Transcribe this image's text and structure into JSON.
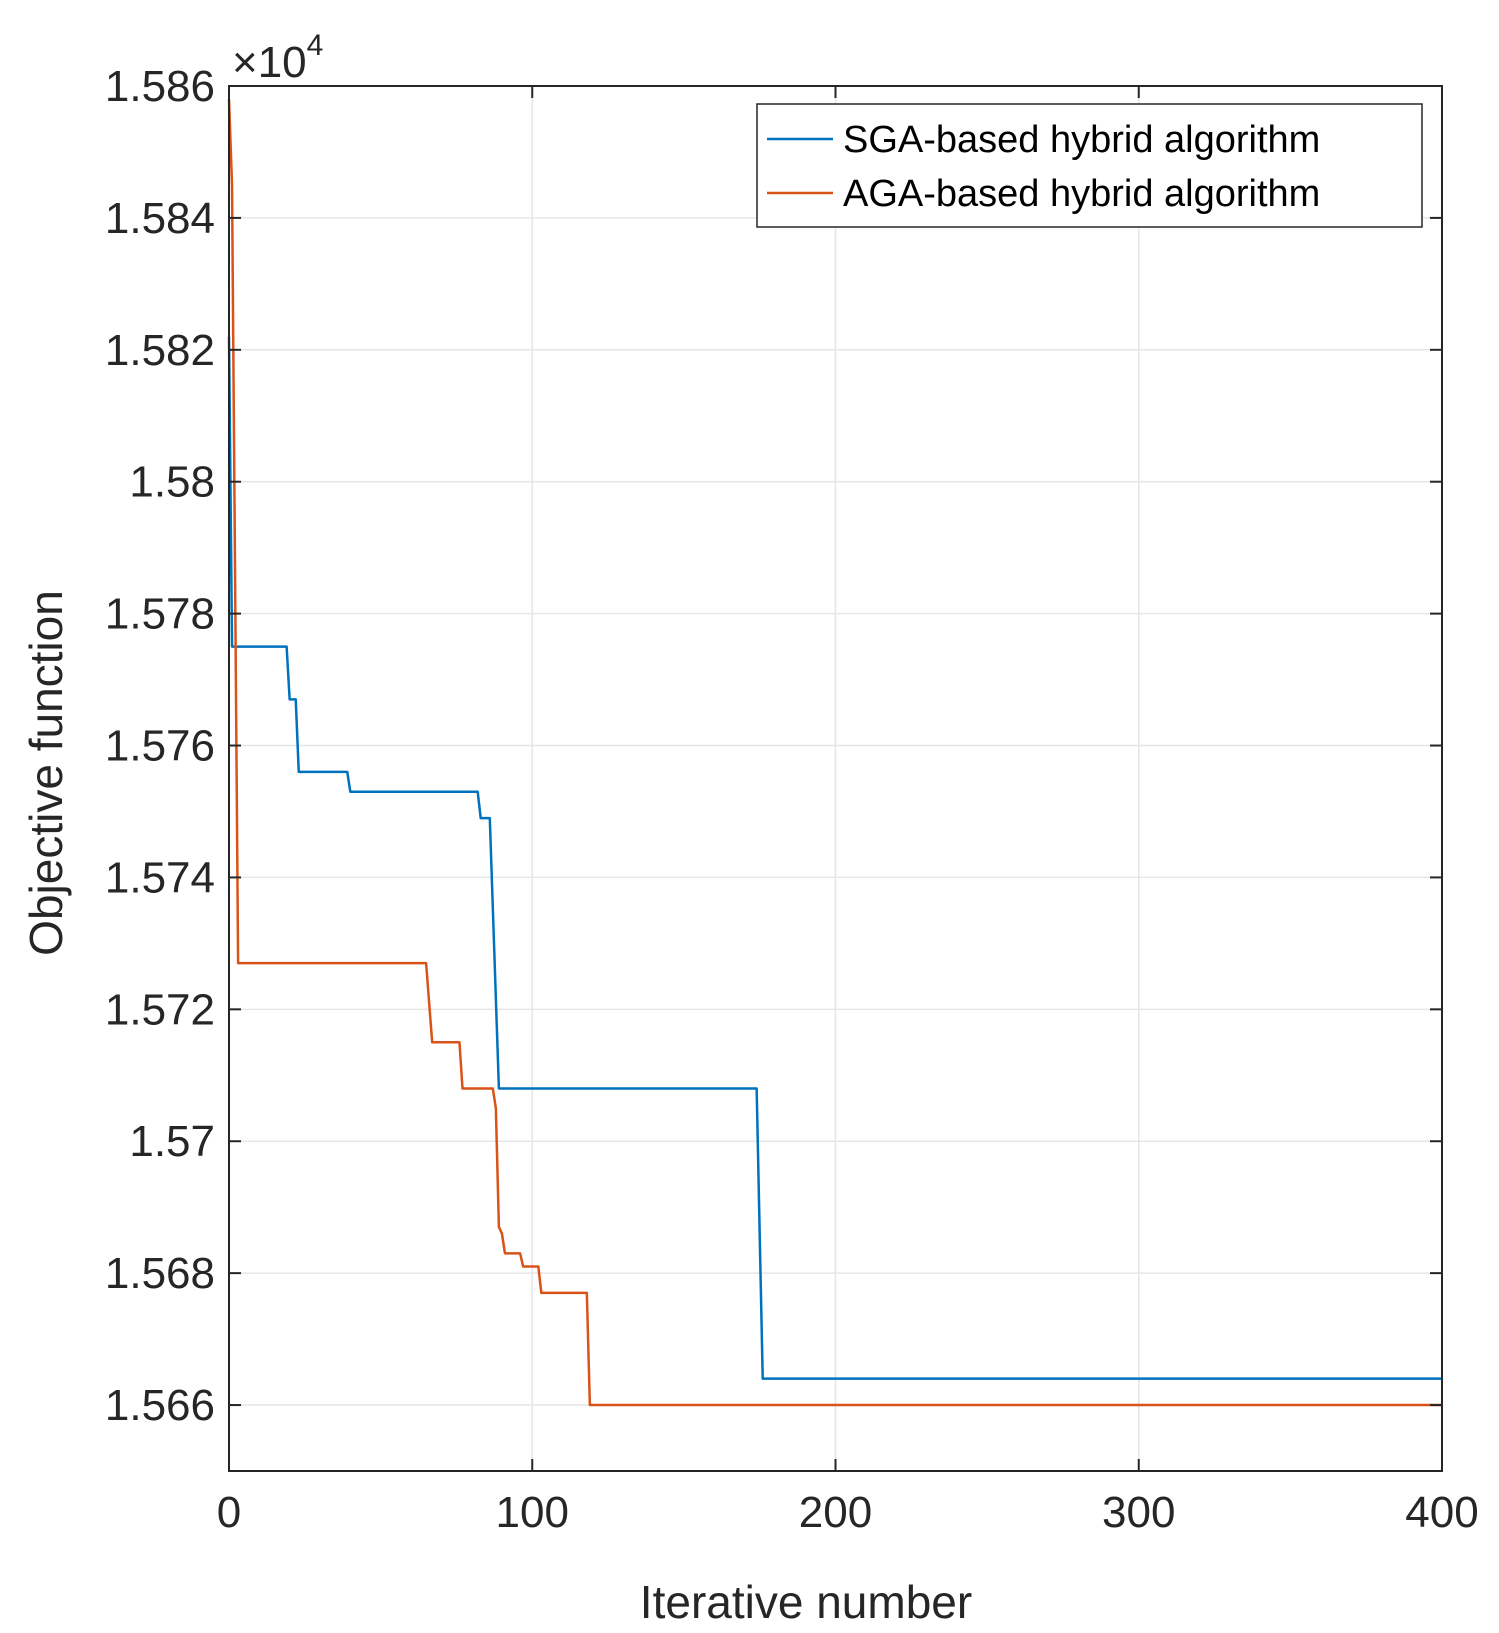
{
  "chart_data": {
    "type": "line",
    "xlabel": "Iterative number",
    "ylabel": "Objective function",
    "y_multiplier_label": "×10",
    "y_multiplier_exponent": "4",
    "xlim": [
      0,
      400
    ],
    "ylim": [
      1.565,
      1.586
    ],
    "x_ticks": [
      0,
      100,
      200,
      300,
      400
    ],
    "x_tick_labels": [
      "0",
      "100",
      "200",
      "300",
      "400"
    ],
    "y_ticks": [
      1.566,
      1.568,
      1.57,
      1.572,
      1.574,
      1.576,
      1.578,
      1.58,
      1.582,
      1.584,
      1.586
    ],
    "y_tick_labels": [
      "1.566",
      "1.568",
      "1.57",
      "1.572",
      "1.574",
      "1.576",
      "1.578",
      "1.58",
      "1.582",
      "1.584",
      "1.586"
    ],
    "grid": true,
    "legend_position": "top-right",
    "series": [
      {
        "name": "SGA-based hybrid algorithm",
        "color": "#0072BD",
        "points": [
          [
            0,
            1.5822
          ],
          [
            1,
            1.5775
          ],
          [
            19,
            1.5775
          ],
          [
            20,
            1.5767
          ],
          [
            22,
            1.5767
          ],
          [
            23,
            1.5756
          ],
          [
            39,
            1.5756
          ],
          [
            40,
            1.5753
          ],
          [
            82,
            1.5753
          ],
          [
            83,
            1.5749
          ],
          [
            86,
            1.5749
          ],
          [
            89,
            1.5708
          ],
          [
            174,
            1.5708
          ],
          [
            176,
            1.5664
          ],
          [
            215,
            1.5664
          ],
          [
            216,
            1.5664
          ],
          [
            400,
            1.5664
          ]
        ]
      },
      {
        "name": "AGA-based hybrid algorithm",
        "color": "#D95319",
        "points": [
          [
            0,
            1.5858
          ],
          [
            1,
            1.5845
          ],
          [
            3,
            1.5727
          ],
          [
            65,
            1.5727
          ],
          [
            67,
            1.5715
          ],
          [
            76,
            1.5715
          ],
          [
            77,
            1.5708
          ],
          [
            87,
            1.5708
          ],
          [
            88,
            1.5705
          ],
          [
            89,
            1.5687
          ],
          [
            90,
            1.5686
          ],
          [
            91,
            1.5683
          ],
          [
            96,
            1.5683
          ],
          [
            97,
            1.5681
          ],
          [
            102,
            1.5681
          ],
          [
            103,
            1.5677
          ],
          [
            118,
            1.5677
          ],
          [
            119,
            1.566
          ],
          [
            400,
            1.566
          ]
        ]
      }
    ]
  }
}
